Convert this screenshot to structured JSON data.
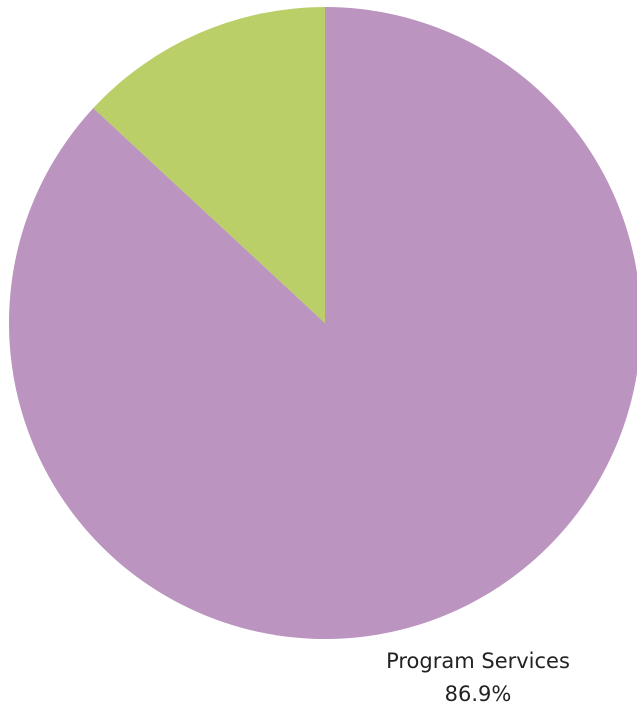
{
  "chart_data": {
    "type": "pie",
    "slices": [
      {
        "label": "Program Services",
        "value": 86.9,
        "value_label": "86.9%",
        "color": "#bb94bf"
      },
      {
        "value": 13.1,
        "color": "#bbcf68"
      }
    ]
  }
}
